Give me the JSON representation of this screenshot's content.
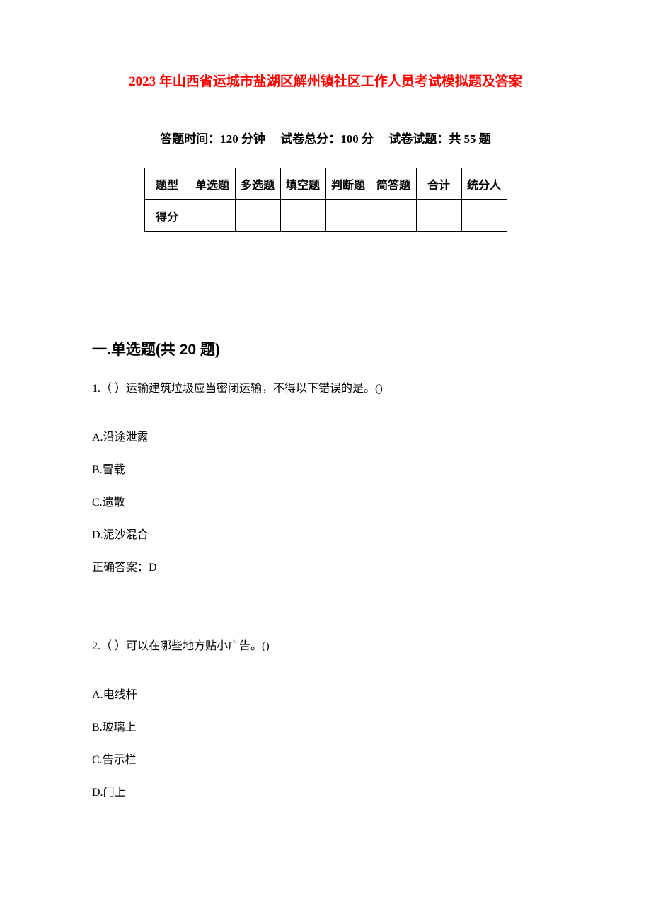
{
  "title": "2023 年山西省运城市盐湖区解州镇社区工作人员考试模拟题及答案",
  "exam_info": {
    "time_label": "答题时间：",
    "time_value": "120 分钟",
    "score_label": "试卷总分：",
    "score_value": "100 分",
    "count_label": "试卷试题：",
    "count_value": "共 55 题"
  },
  "score_table": {
    "header_label": "题型",
    "columns": [
      "单选题",
      "多选题",
      "填空题",
      "判断题",
      "简答题",
      "合计",
      "统分人"
    ],
    "row_label": "得分"
  },
  "section": {
    "number": "一.",
    "heading": "单选题(共 20 题)"
  },
  "questions": [
    {
      "number": "1.",
      "text": "（ ）运输建筑垃圾应当密闭运输，不得以下错误的是。()",
      "options": [
        {
          "label": "A.",
          "text": "沿途泄露"
        },
        {
          "label": "B.",
          "text": "冒载"
        },
        {
          "label": "C.",
          "text": "遗散"
        },
        {
          "label": "D.",
          "text": "泥沙混合"
        }
      ],
      "answer_label": "正确答案：",
      "answer": "D"
    },
    {
      "number": "2.",
      "text": "（ ）可以在哪些地方贴小广告。()",
      "options": [
        {
          "label": "A.",
          "text": "电线杆"
        },
        {
          "label": "B.",
          "text": "玻璃上"
        },
        {
          "label": "C.",
          "text": "告示栏"
        },
        {
          "label": "D.",
          "text": "门上"
        }
      ]
    }
  ],
  "colors": {
    "title_color": "#ff0000",
    "text_color": "#000000",
    "background_color": "#ffffff",
    "border_color": "#000000"
  },
  "typography": {
    "title_fontsize": 19,
    "info_fontsize": 17,
    "section_fontsize": 21,
    "body_fontsize": 16,
    "table_fontsize": 16
  }
}
